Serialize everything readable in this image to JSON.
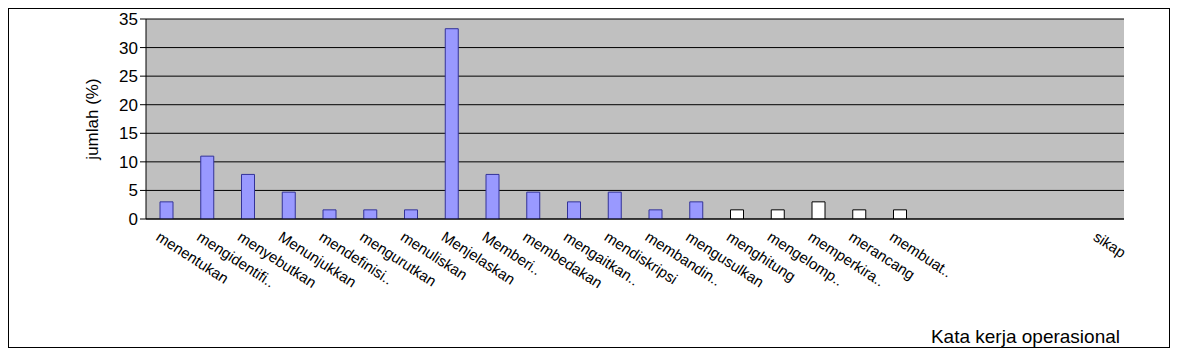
{
  "chart_data": {
    "type": "bar",
    "y_label": "jumlah (%)",
    "x_label": "Kata kerja operasional",
    "categories": [
      "menentukan",
      "mengidentifi..",
      "menyebutkan",
      "Menunjukkan",
      "mendefinisi..",
      "mengurutkan",
      "menuliskan",
      "Menjelaskan",
      "Memberi..",
      "membedakan",
      "mengaitkan..",
      "mendiskripsi",
      "membandin..",
      "mengusulkan",
      "menghitung",
      "mengelomp..",
      "memperkira..",
      "merancang",
      "membuat..",
      null,
      null,
      null,
      null,
      "sikap"
    ],
    "values": [
      3,
      11,
      7.8,
      4.7,
      1.6,
      1.6,
      1.6,
      33.3,
      7.8,
      4.7,
      3,
      4.7,
      1.6,
      3,
      1.6,
      1.6,
      3,
      1.6,
      1.6,
      null,
      null,
      null,
      null,
      null
    ],
    "colors": [
      "#9999ff",
      "#9999ff",
      "#9999ff",
      "#9999ff",
      "#9999ff",
      "#9999ff",
      "#9999ff",
      "#9999ff",
      "#9999ff",
      "#9999ff",
      "#9999ff",
      "#9999ff",
      "#9999ff",
      "#9999ff",
      "#ffffff",
      "#ffffff",
      "#ffffff",
      "#ffffff",
      "#ffffff",
      "#ffffff",
      "#ffffff",
      "#ffffff",
      "#ffffff",
      "#ffffff"
    ],
    "ylim": [
      0,
      35
    ],
    "yticks": [
      0,
      5,
      10,
      15,
      20,
      25,
      30,
      35
    ],
    "grid": true
  }
}
